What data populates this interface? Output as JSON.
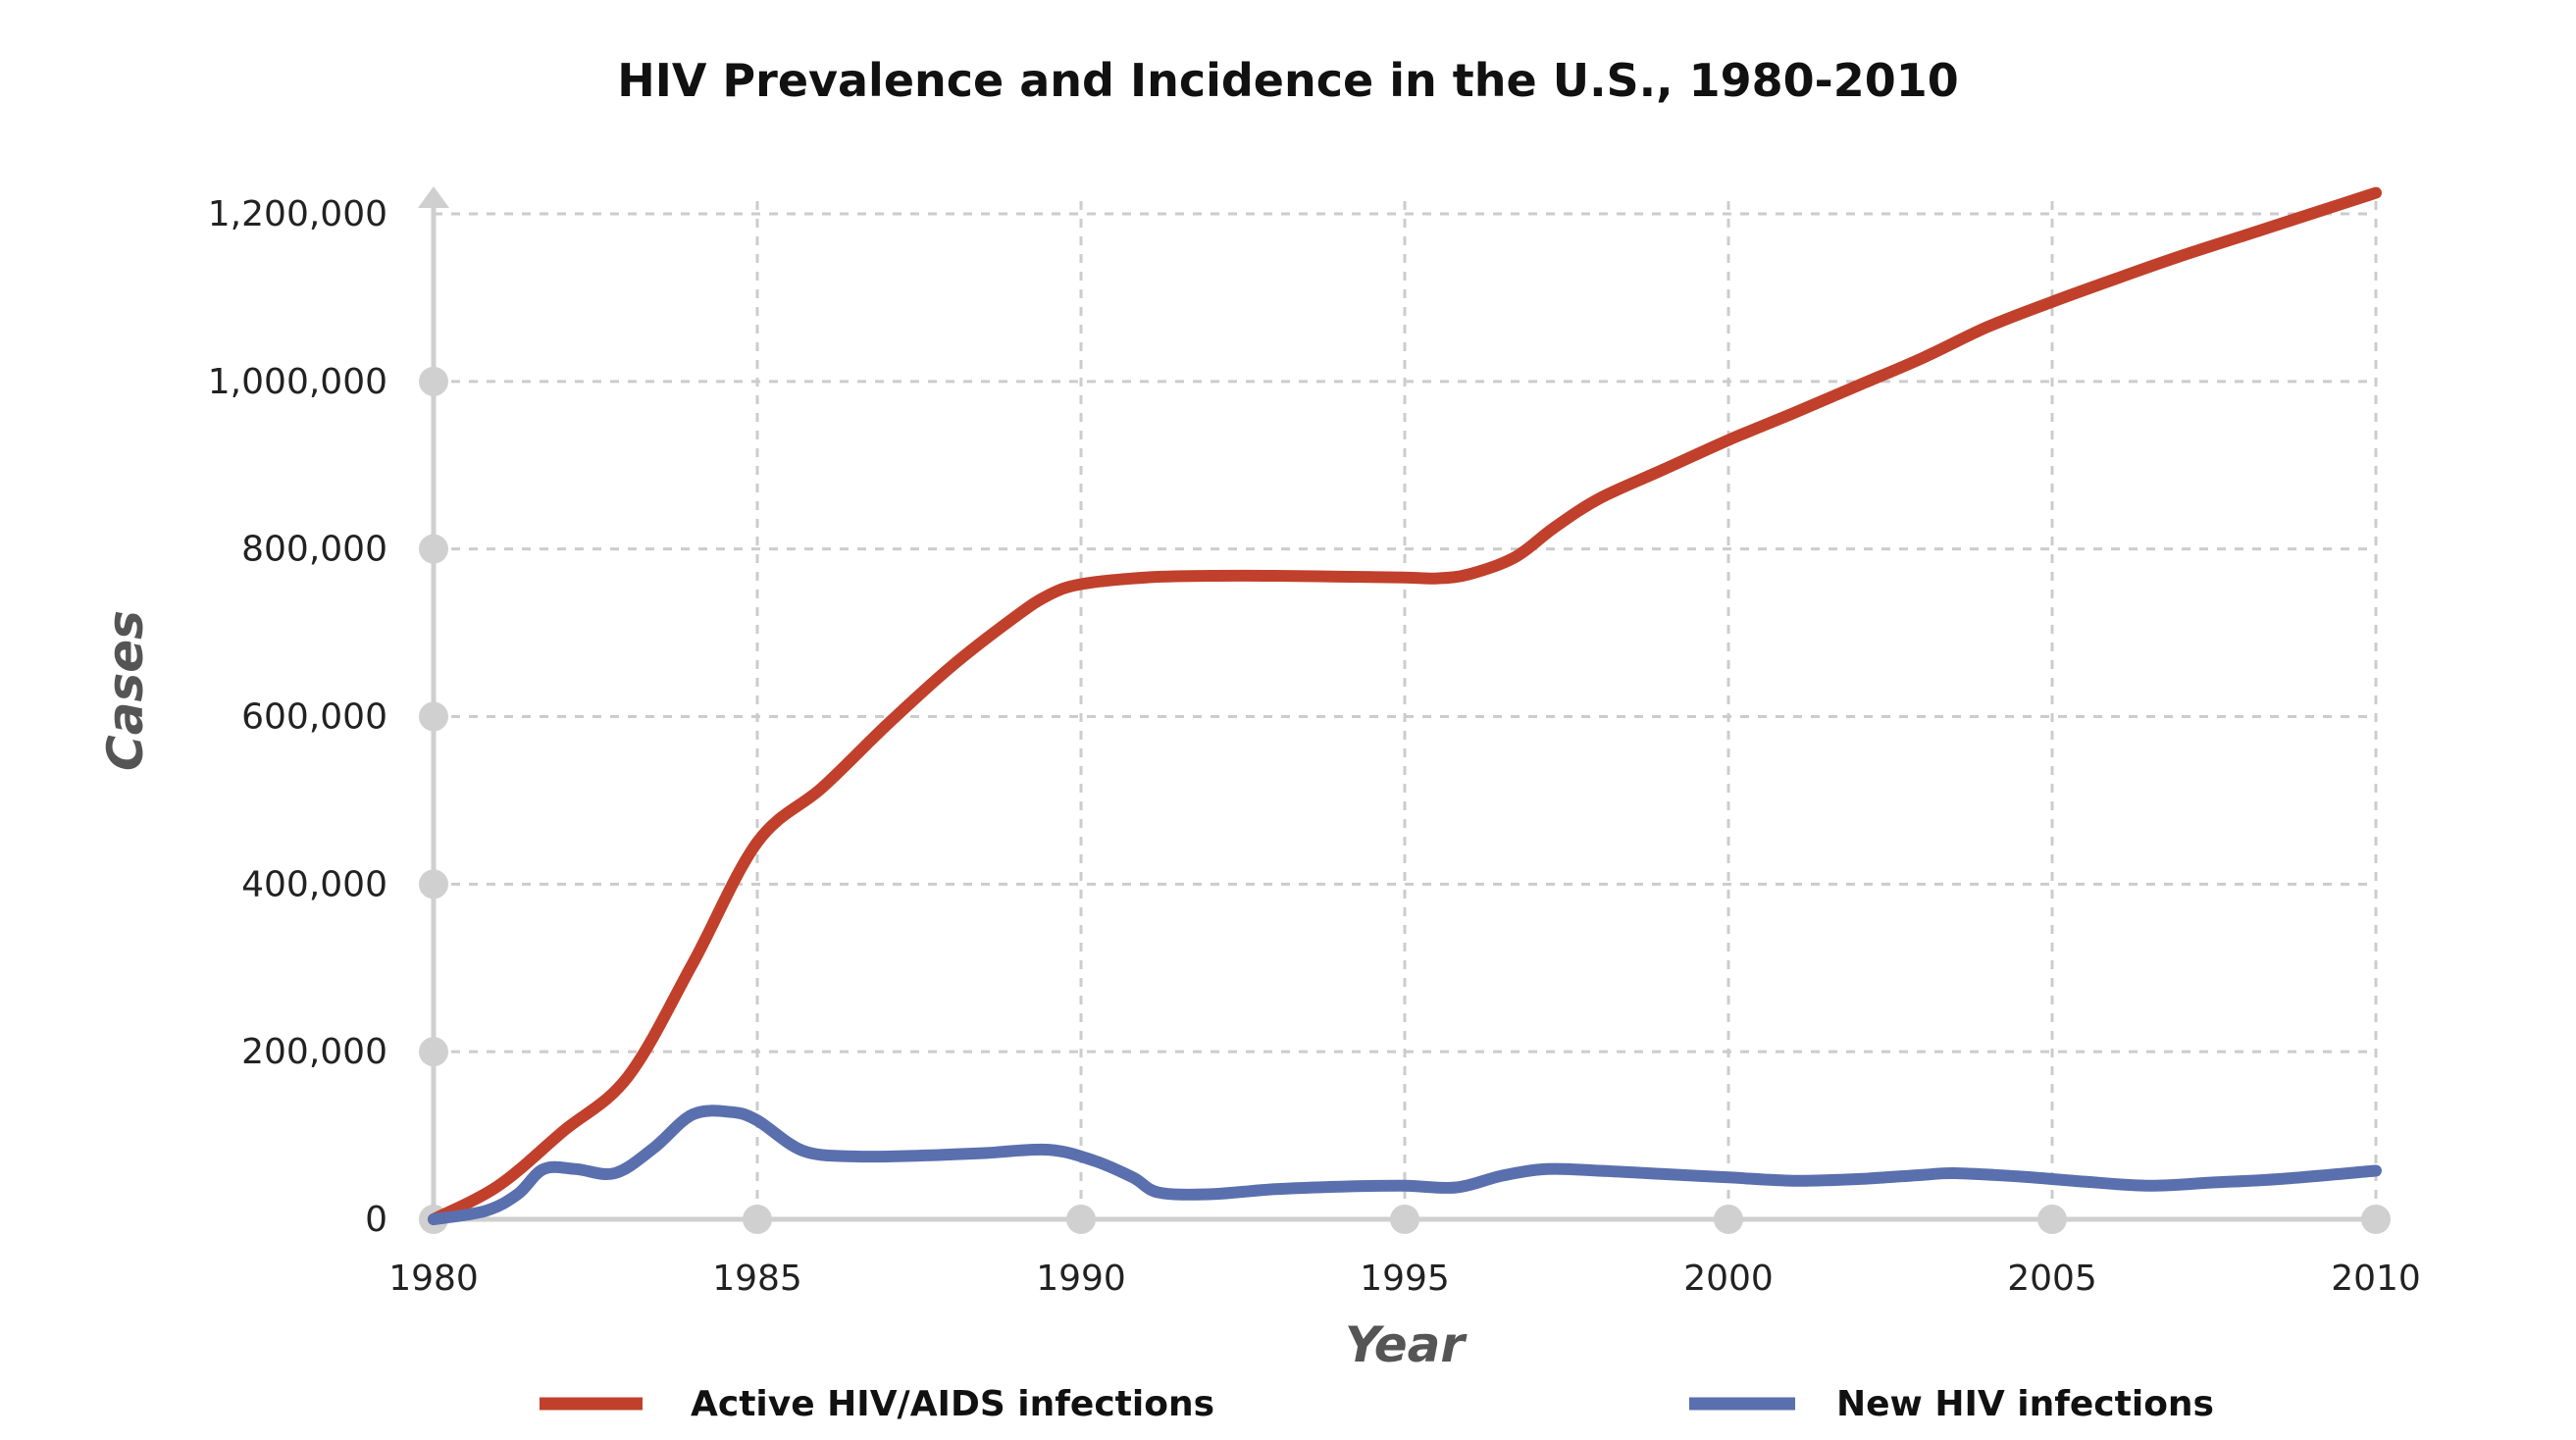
{
  "chart_data": {
    "type": "line",
    "title": "HIV Prevalence and Incidence in the U.S., 1980-2010",
    "xlabel": "Year",
    "ylabel": "Cases",
    "xlim": [
      1980,
      2010
    ],
    "ylim": [
      0,
      1200000
    ],
    "x_ticks": [
      1980,
      1985,
      1990,
      1995,
      2000,
      2005,
      2010
    ],
    "x_tick_labels": [
      "1980",
      "1985",
      "1990",
      "1995",
      "2000",
      "2005",
      "2010"
    ],
    "y_ticks": [
      0,
      200000,
      400000,
      600000,
      800000,
      1000000,
      1200000
    ],
    "y_tick_labels": [
      "0",
      "200,000",
      "400,000",
      "600,000",
      "800,000",
      "1,000,000",
      "1,200,000"
    ],
    "grid": true,
    "legend_position": "bottom",
    "series": [
      {
        "name": "Active HIV/AIDS infections",
        "color": "#c0402b",
        "points": [
          [
            1980,
            0
          ],
          [
            1981,
            40000
          ],
          [
            1982,
            105000
          ],
          [
            1983,
            170000
          ],
          [
            1984,
            305000
          ],
          [
            1985,
            450000
          ],
          [
            1986,
            515000
          ],
          [
            1987,
            590000
          ],
          [
            1988,
            660000
          ],
          [
            1989,
            720000
          ],
          [
            1989.5,
            745000
          ],
          [
            1990,
            758000
          ],
          [
            1991,
            766000
          ],
          [
            1992,
            768000
          ],
          [
            1993,
            768000
          ],
          [
            1994,
            767000
          ],
          [
            1995,
            766000
          ],
          [
            1995.5,
            765000
          ],
          [
            1996,
            770000
          ],
          [
            1996.7,
            790000
          ],
          [
            1997.3,
            825000
          ],
          [
            1998,
            860000
          ],
          [
            1999,
            895000
          ],
          [
            2000,
            930000
          ],
          [
            2001,
            962000
          ],
          [
            2002,
            995000
          ],
          [
            2003,
            1028000
          ],
          [
            2004,
            1065000
          ],
          [
            2005,
            1095000
          ],
          [
            2006,
            1123000
          ],
          [
            2007,
            1150000
          ],
          [
            2008,
            1175000
          ],
          [
            2009,
            1200000
          ],
          [
            2010,
            1225000
          ]
        ]
      },
      {
        "name": "New HIV infections",
        "color": "#5a6fad",
        "points": [
          [
            1980,
            0
          ],
          [
            1980.8,
            10000
          ],
          [
            1981.3,
            30000
          ],
          [
            1981.7,
            60000
          ],
          [
            1982.2,
            60000
          ],
          [
            1982.8,
            55000
          ],
          [
            1983.4,
            85000
          ],
          [
            1984,
            125000
          ],
          [
            1984.6,
            128000
          ],
          [
            1985,
            118000
          ],
          [
            1985.7,
            82000
          ],
          [
            1986.5,
            75000
          ],
          [
            1987.5,
            76000
          ],
          [
            1988.5,
            79000
          ],
          [
            1989.5,
            83000
          ],
          [
            1990.2,
            70000
          ],
          [
            1990.8,
            50000
          ],
          [
            1991.2,
            32000
          ],
          [
            1992,
            30000
          ],
          [
            1993,
            36000
          ],
          [
            1994,
            39000
          ],
          [
            1995,
            40000
          ],
          [
            1995.8,
            38000
          ],
          [
            1996.5,
            52000
          ],
          [
            1997.2,
            60000
          ],
          [
            1998,
            58000
          ],
          [
            1999,
            54000
          ],
          [
            2000,
            50000
          ],
          [
            2001,
            46000
          ],
          [
            2002,
            48000
          ],
          [
            2003,
            53000
          ],
          [
            2003.5,
            55000
          ],
          [
            2004.5,
            51000
          ],
          [
            2005.5,
            45000
          ],
          [
            2006.5,
            40000
          ],
          [
            2007.5,
            44000
          ],
          [
            2008.5,
            48000
          ],
          [
            2010,
            58000
          ]
        ]
      }
    ]
  }
}
